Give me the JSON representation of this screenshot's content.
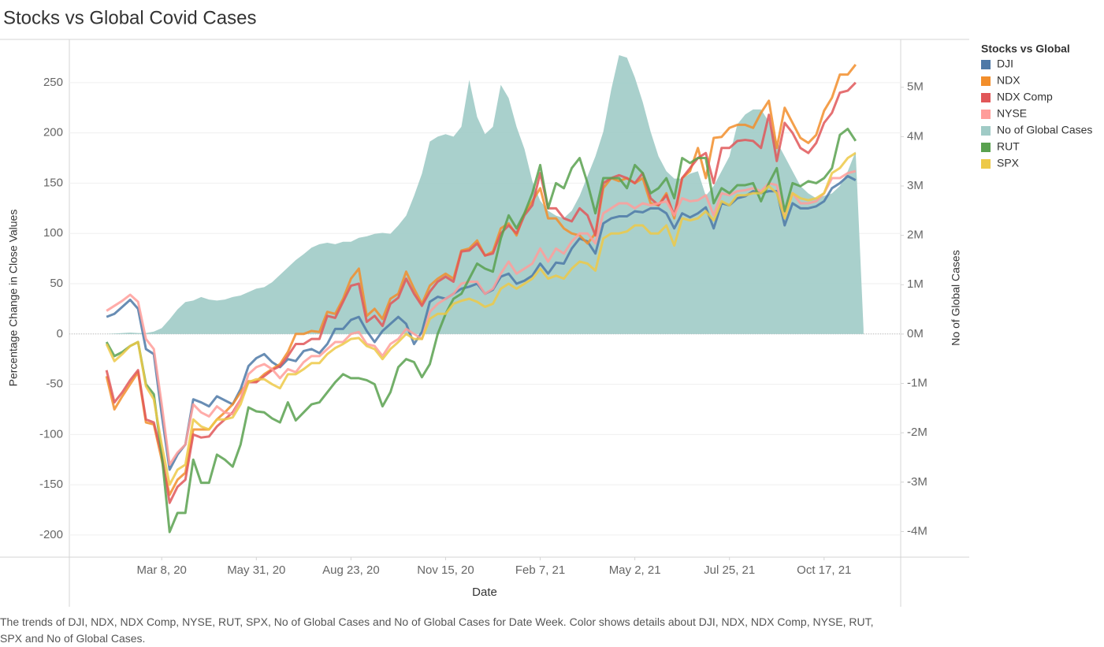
{
  "chart_data": {
    "type": "line",
    "title": "Stocks vs Global Covid Cases",
    "x_label": "Date",
    "y_label": "Percentage Change in Close Values",
    "y2_label": "No of Global Cases",
    "legend_title": "Stocks vs Global",
    "caption": "The trends of DJI, NDX, NDX Comp, NYSE, RUT, SPX, No of Global Cases and No of Global Cases for Date Week.  Color shows details about DJI, NDX, NDX Comp, NYSE, RUT, SPX and No of Global Cases.",
    "xlim": [
      "2019-12-17",
      "2021-12-24"
    ],
    "xticks": [
      {
        "value": "2020-03-08",
        "label": "Mar 8, 20"
      },
      {
        "value": "2020-05-31",
        "label": "May 31, 20"
      },
      {
        "value": "2020-08-23",
        "label": "Aug 23, 20"
      },
      {
        "value": "2020-11-15",
        "label": "Nov 15, 20"
      },
      {
        "value": "2021-02-07",
        "label": "Feb 7, 21"
      },
      {
        "value": "2021-05-02",
        "label": "May 2, 21"
      },
      {
        "value": "2021-07-25",
        "label": "Jul 25, 21"
      },
      {
        "value": "2021-10-17",
        "label": "Oct 17, 21"
      }
    ],
    "ylim": [
      -222,
      293
    ],
    "yticks": [
      -200,
      -150,
      -100,
      -50,
      0,
      50,
      100,
      150,
      200,
      250
    ],
    "y2lim": [
      -4520000,
      5970000
    ],
    "y2ticks": [
      {
        "value": -4000000,
        "label": "-4M"
      },
      {
        "value": -3000000,
        "label": "-3M"
      },
      {
        "value": -2000000,
        "label": "-2M"
      },
      {
        "value": -1000000,
        "label": "-1M"
      },
      {
        "value": 0,
        "label": "0M"
      },
      {
        "value": 1000000,
        "label": "1M"
      },
      {
        "value": 2000000,
        "label": "2M"
      },
      {
        "value": 3000000,
        "label": "3M"
      },
      {
        "value": 4000000,
        "label": "4M"
      },
      {
        "value": 5000000,
        "label": "5M"
      }
    ],
    "grid": true,
    "x": [
      "2020-01-19",
      "2020-01-26",
      "2020-02-02",
      "2020-02-09",
      "2020-02-16",
      "2020-02-23",
      "2020-03-01",
      "2020-03-08",
      "2020-03-15",
      "2020-03-22",
      "2020-03-29",
      "2020-04-05",
      "2020-04-12",
      "2020-04-19",
      "2020-04-26",
      "2020-05-03",
      "2020-05-10",
      "2020-05-17",
      "2020-05-24",
      "2020-05-31",
      "2020-06-07",
      "2020-06-14",
      "2020-06-21",
      "2020-06-28",
      "2020-07-05",
      "2020-07-12",
      "2020-07-19",
      "2020-07-26",
      "2020-08-02",
      "2020-08-09",
      "2020-08-16",
      "2020-08-23",
      "2020-08-30",
      "2020-09-06",
      "2020-09-13",
      "2020-09-20",
      "2020-09-27",
      "2020-10-04",
      "2020-10-11",
      "2020-10-18",
      "2020-10-25",
      "2020-11-01",
      "2020-11-08",
      "2020-11-15",
      "2020-11-22",
      "2020-11-29",
      "2020-12-06",
      "2020-12-13",
      "2020-12-20",
      "2020-12-27",
      "2021-01-03",
      "2021-01-10",
      "2021-01-17",
      "2021-01-24",
      "2021-01-31",
      "2021-02-07",
      "2021-02-14",
      "2021-02-21",
      "2021-02-28",
      "2021-03-07",
      "2021-03-14",
      "2021-03-21",
      "2021-03-28",
      "2021-04-04",
      "2021-04-11",
      "2021-04-18",
      "2021-04-25",
      "2021-05-02",
      "2021-05-09",
      "2021-05-16",
      "2021-05-23",
      "2021-05-30",
      "2021-06-06",
      "2021-06-13",
      "2021-06-20",
      "2021-06-27",
      "2021-07-04",
      "2021-07-11",
      "2021-07-18",
      "2021-07-25",
      "2021-08-01",
      "2021-08-08",
      "2021-08-15",
      "2021-08-22",
      "2021-08-29",
      "2021-09-05",
      "2021-09-12",
      "2021-09-19",
      "2021-09-26",
      "2021-10-03",
      "2021-10-10",
      "2021-10-17",
      "2021-10-24",
      "2021-10-31",
      "2021-11-07",
      "2021-11-14",
      "2021-11-21"
    ],
    "series": [
      {
        "name": "DJI",
        "color": "#4e79a7",
        "values": [
          17,
          20,
          27,
          34,
          25,
          -15,
          -20,
          -80,
          -135,
          -120,
          -110,
          -65,
          -68,
          -72,
          -62,
          -66,
          -70,
          -55,
          -32,
          -24,
          -20,
          -28,
          -33,
          -25,
          -27,
          -17,
          -15,
          -19,
          -10,
          5,
          5,
          14,
          17,
          3,
          -8,
          3,
          10,
          17,
          10,
          -10,
          2,
          32,
          37,
          35,
          40,
          45,
          47,
          50,
          40,
          44,
          57,
          60,
          50,
          53,
          58,
          70,
          60,
          71,
          70,
          85,
          95,
          92,
          80,
          110,
          115,
          117,
          117,
          122,
          121,
          125,
          125,
          120,
          105,
          120,
          116,
          120,
          126,
          105,
          130,
          128,
          135,
          137,
          142,
          140,
          142,
          142,
          108,
          130,
          125,
          125,
          127,
          132,
          145,
          150,
          157,
          153,
          null
        ]
      },
      {
        "name": "NDX",
        "color": "#f28e2b",
        "values": [
          -42,
          -75,
          -62,
          -50,
          -38,
          -88,
          -90,
          -125,
          -160,
          -145,
          -138,
          -95,
          -95,
          -95,
          -85,
          -78,
          -70,
          -58,
          -47,
          -47,
          -40,
          -35,
          -30,
          -18,
          0,
          0,
          3,
          2,
          22,
          20,
          35,
          55,
          65,
          18,
          25,
          15,
          35,
          40,
          62,
          45,
          30,
          48,
          55,
          60,
          55,
          83,
          85,
          93,
          78,
          82,
          105,
          110,
          98,
          120,
          132,
          145,
          115,
          115,
          105,
          100,
          98,
          90,
          100,
          145,
          155,
          152,
          155,
          150,
          155,
          130,
          128,
          140,
          115,
          155,
          162,
          185,
          155,
          195,
          196,
          205,
          208,
          208,
          205,
          220,
          232,
          185,
          225,
          210,
          195,
          190,
          198,
          222,
          235,
          258,
          258,
          268,
          null
        ]
      },
      {
        "name": "NDX Comp",
        "color": "#e15759",
        "values": [
          -36,
          -68,
          -58,
          -46,
          -36,
          -85,
          -88,
          -120,
          -168,
          -152,
          -145,
          -100,
          -103,
          -102,
          -92,
          -85,
          -78,
          -65,
          -48,
          -48,
          -42,
          -36,
          -32,
          -22,
          -10,
          -10,
          -5,
          -5,
          18,
          16,
          32,
          48,
          50,
          12,
          18,
          8,
          30,
          36,
          55,
          40,
          28,
          42,
          52,
          57,
          52,
          82,
          83,
          90,
          78,
          80,
          100,
          108,
          100,
          118,
          128,
          160,
          125,
          125,
          115,
          112,
          125,
          118,
          98,
          150,
          155,
          158,
          155,
          150,
          160,
          135,
          128,
          138,
          118,
          155,
          165,
          175,
          180,
          150,
          185,
          185,
          192,
          193,
          192,
          185,
          218,
          172,
          210,
          200,
          185,
          180,
          190,
          210,
          220,
          240,
          242,
          250,
          null
        ]
      },
      {
        "name": "NYSE",
        "color": "#ff9d9a",
        "values": [
          23,
          28,
          33,
          39,
          32,
          -5,
          -15,
          -70,
          -130,
          -118,
          -110,
          -70,
          -78,
          -82,
          -72,
          -78,
          -80,
          -65,
          -40,
          -33,
          -30,
          -35,
          -44,
          -35,
          -38,
          -28,
          -22,
          -22,
          -15,
          -8,
          -8,
          0,
          2,
          -10,
          -12,
          -22,
          -10,
          -5,
          5,
          0,
          -5,
          22,
          30,
          35,
          40,
          50,
          52,
          52,
          40,
          45,
          60,
          72,
          60,
          65,
          70,
          85,
          72,
          85,
          80,
          92,
          100,
          100,
          90,
          120,
          125,
          130,
          130,
          125,
          130,
          128,
          130,
          132,
          118,
          135,
          132,
          133,
          138,
          118,
          140,
          138,
          142,
          143,
          145,
          142,
          150,
          148,
          118,
          140,
          130,
          130,
          132,
          140,
          155,
          155,
          160,
          162,
          null
        ]
      },
      {
        "name": "No of Global Cases",
        "color": "#a0cbc6",
        "type": "area",
        "axis": "y2",
        "values": [
          0,
          10000,
          20000,
          30000,
          20000,
          20000,
          50000,
          120000,
          300000,
          500000,
          650000,
          680000,
          750000,
          700000,
          680000,
          700000,
          750000,
          780000,
          850000,
          920000,
          950000,
          1050000,
          1200000,
          1350000,
          1500000,
          1620000,
          1750000,
          1820000,
          1850000,
          1820000,
          1870000,
          1870000,
          1950000,
          1980000,
          2030000,
          2050000,
          2030000,
          2200000,
          2400000,
          2800000,
          3250000,
          3900000,
          4000000,
          4050000,
          4000000,
          4200000,
          5150000,
          4400000,
          4050000,
          4200000,
          5050000,
          4780000,
          4200000,
          3750000,
          3100000,
          2700000,
          2500000,
          2400000,
          2350000,
          2500000,
          2800000,
          3200000,
          3600000,
          4100000,
          4950000,
          5650000,
          5600000,
          5200000,
          4700000,
          4100000,
          3600000,
          3300000,
          3150000,
          3150000,
          3250000,
          3300000,
          2800000,
          3000000,
          3300000,
          3600000,
          4250000,
          4450000,
          4550000,
          4550000,
          4300000,
          3900000,
          3600000,
          3300000,
          3000000,
          2850000,
          2750000,
          2800000,
          2850000,
          3000000,
          3300000,
          3700000,
          100000
        ]
      },
      {
        "name": "RUT",
        "color": "#59a14f",
        "values": [
          -8,
          -22,
          -18,
          -12,
          -8,
          -50,
          -60,
          -120,
          -197,
          -178,
          -178,
          -125,
          -148,
          -148,
          -120,
          -125,
          -132,
          -110,
          -73,
          -77,
          -78,
          -84,
          -88,
          -68,
          -86,
          -78,
          -70,
          -68,
          -58,
          -48,
          -40,
          -44,
          -44,
          -46,
          -50,
          -72,
          -58,
          -33,
          -25,
          -28,
          -43,
          -30,
          0,
          20,
          35,
          40,
          55,
          70,
          65,
          62,
          95,
          118,
          105,
          120,
          140,
          168,
          125,
          150,
          145,
          165,
          175,
          150,
          120,
          155,
          155,
          155,
          145,
          168,
          160,
          140,
          145,
          155,
          135,
          175,
          170,
          175,
          175,
          130,
          145,
          140,
          148,
          148,
          150,
          132,
          150,
          165,
          122,
          150,
          147,
          152,
          150,
          155,
          165,
          198,
          204,
          192,
          null
        ]
      },
      {
        "name": "SPX",
        "color": "#edc948",
        "values": [
          -10,
          -27,
          -20,
          -12,
          -8,
          -52,
          -65,
          -110,
          -150,
          -135,
          -130,
          -85,
          -92,
          -95,
          -85,
          -85,
          -83,
          -70,
          -48,
          -45,
          -45,
          -50,
          -54,
          -40,
          -40,
          -35,
          -29,
          -29,
          -20,
          -14,
          -10,
          -5,
          -4,
          -12,
          -15,
          -25,
          -15,
          -8,
          0,
          -5,
          -5,
          15,
          20,
          20,
          30,
          33,
          35,
          32,
          27,
          30,
          45,
          50,
          45,
          50,
          55,
          65,
          55,
          58,
          55,
          65,
          72,
          70,
          63,
          95,
          100,
          100,
          102,
          108,
          108,
          100,
          100,
          108,
          88,
          115,
          113,
          115,
          122,
          113,
          132,
          128,
          138,
          138,
          140,
          140,
          147,
          140,
          115,
          140,
          135,
          133,
          135,
          140,
          160,
          165,
          175,
          180,
          null
        ]
      }
    ]
  }
}
